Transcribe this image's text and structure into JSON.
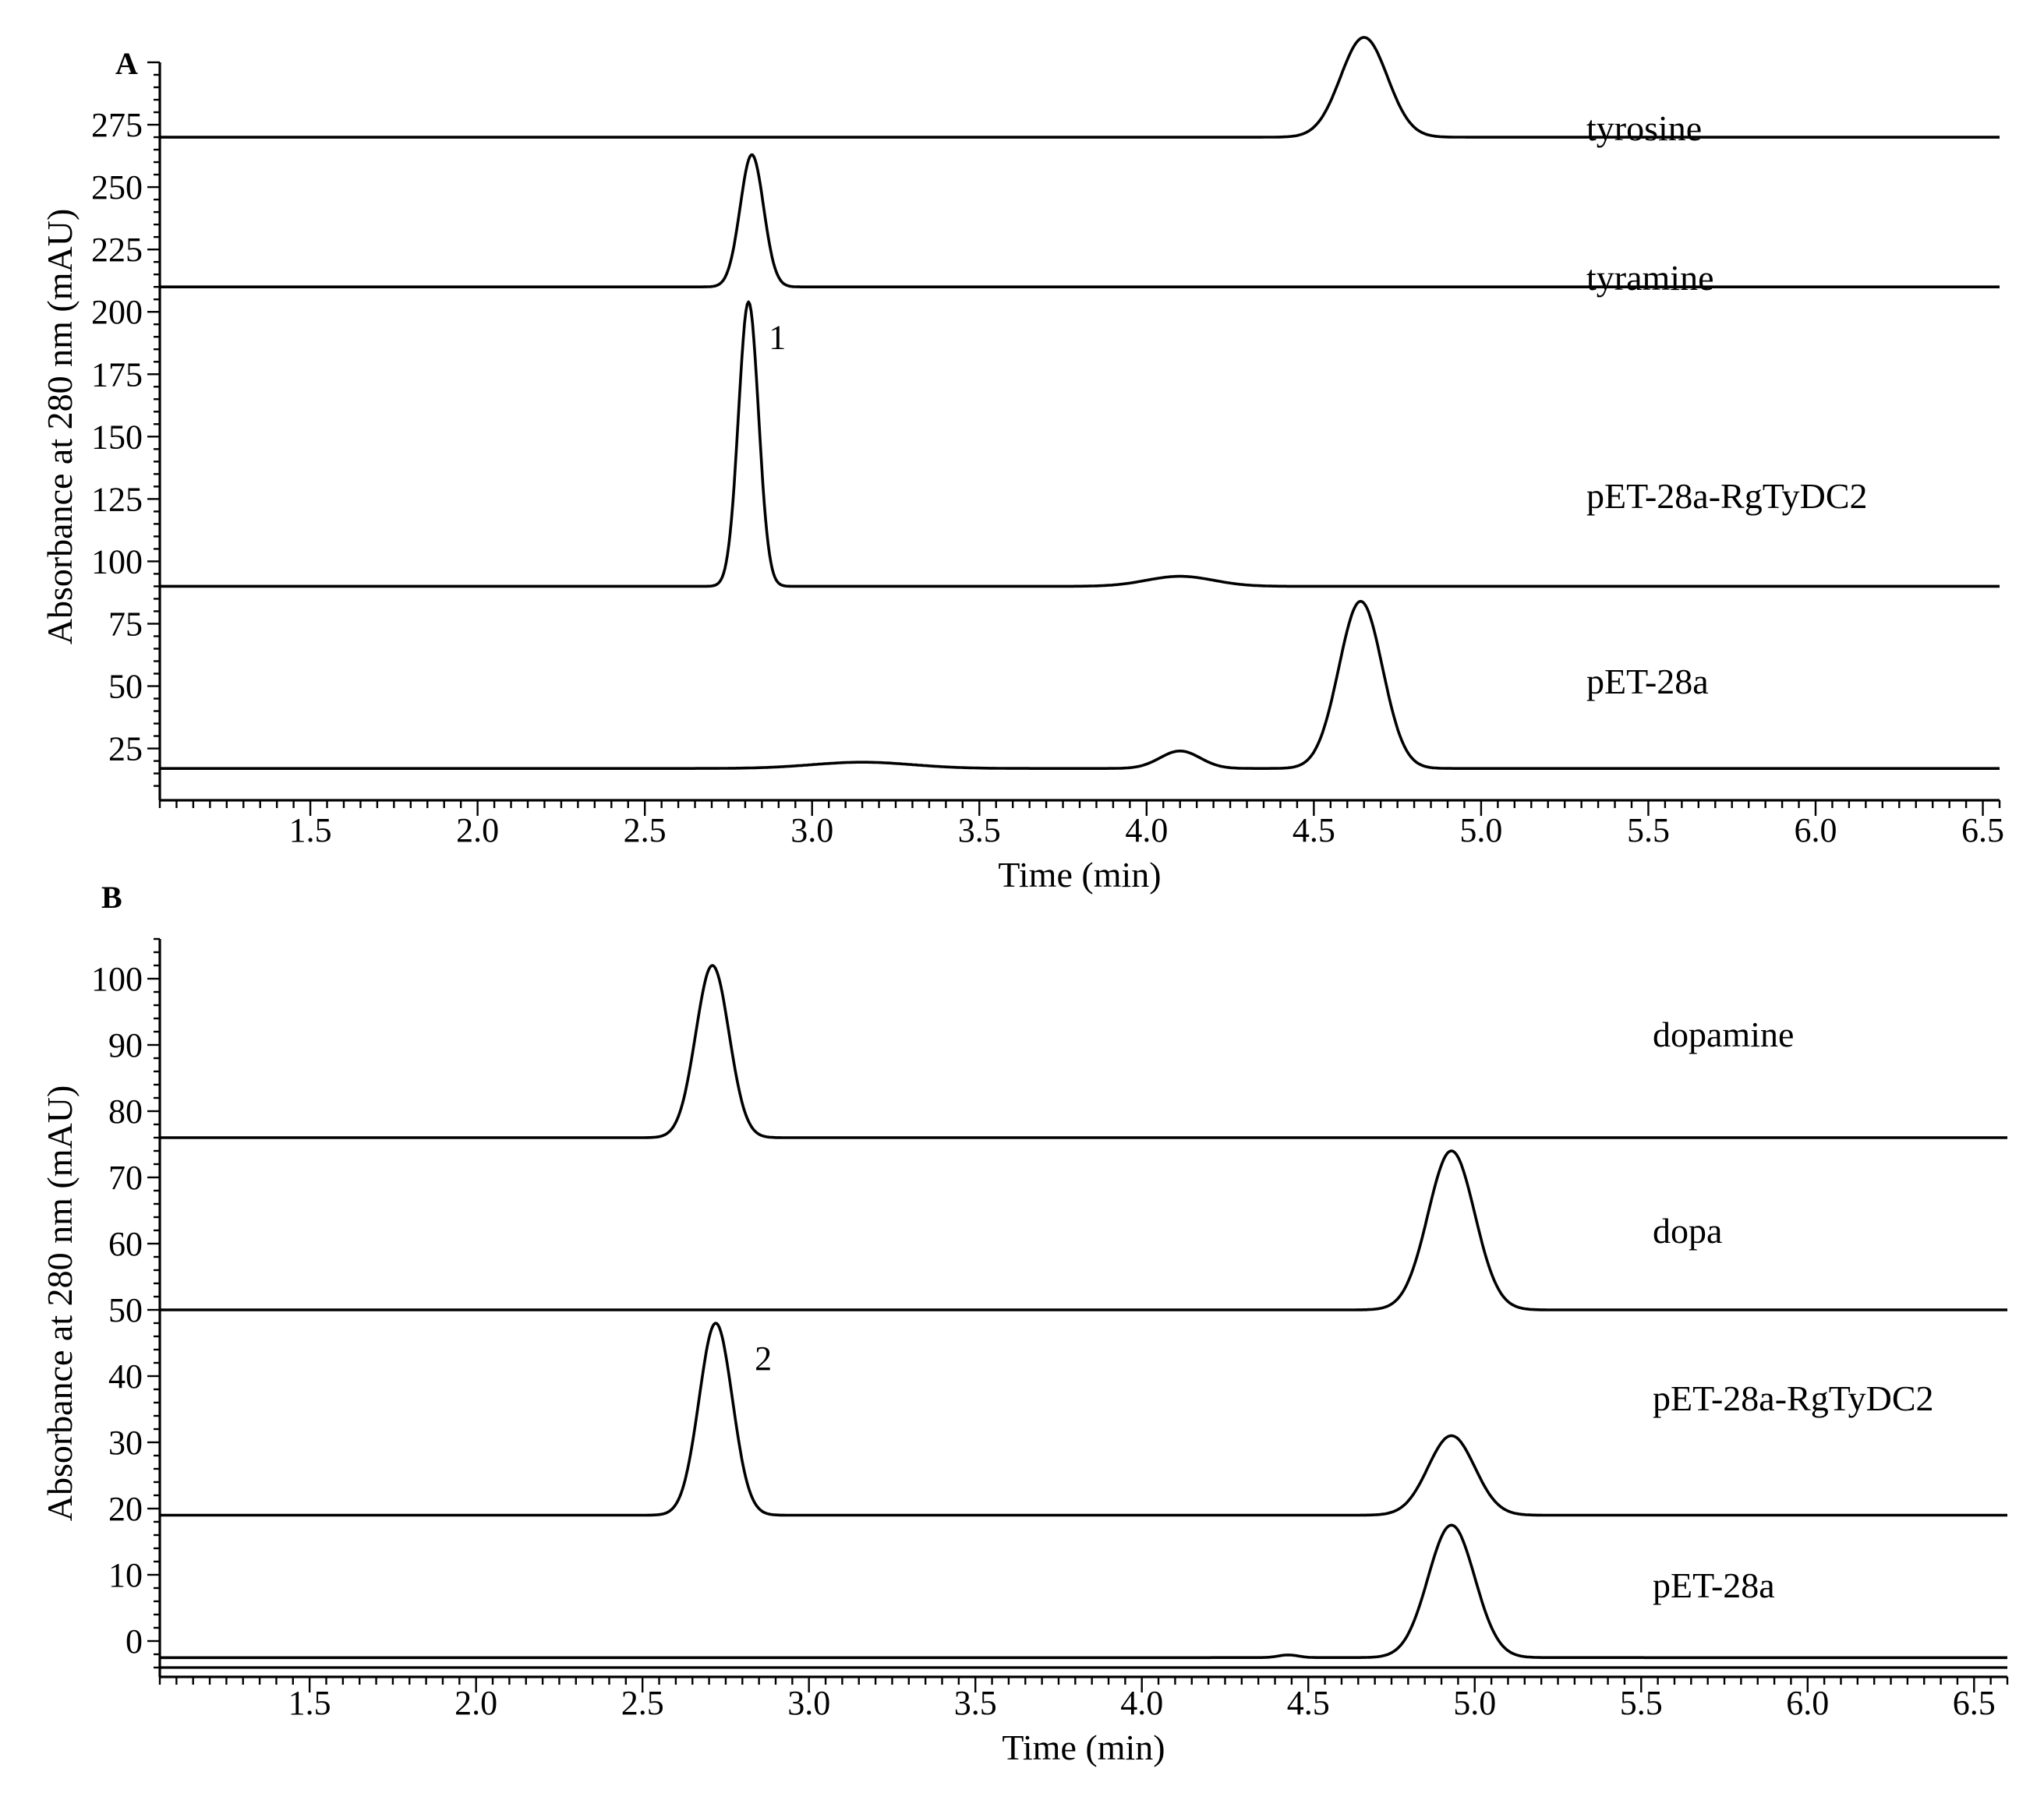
{
  "chart_data": [
    {
      "type": "line",
      "panel": "A",
      "xlabel": "Time (min)",
      "ylabel": "Absorbance at 280 nm (mAU)",
      "xlim": [
        1.05,
        6.55
      ],
      "ylim": [
        8,
        300
      ],
      "xticks": [
        1.5,
        2.0,
        2.5,
        3.0,
        3.5,
        4.0,
        4.5,
        5.0,
        5.5,
        6.0,
        6.5
      ],
      "yticks": [
        25,
        50,
        75,
        100,
        125,
        150,
        175,
        200,
        225,
        250,
        275
      ],
      "series": [
        {
          "name": "tyrosine",
          "baseline": 270,
          "peaks": [
            {
              "x": 4.65,
              "y": 310,
              "width": 0.07
            }
          ]
        },
        {
          "name": "tyramine",
          "baseline": 210,
          "peaks": [
            {
              "x": 2.82,
              "y": 263,
              "width": 0.035
            }
          ]
        },
        {
          "name": "pET-28a-RgTyDC2",
          "baseline": 90,
          "peaks": [
            {
              "x": 2.81,
              "y": 204,
              "width": 0.03,
              "label": "1"
            },
            {
              "x": 4.1,
              "y": 94,
              "width": 0.1
            }
          ]
        },
        {
          "name": "pET-28a",
          "baseline": 17,
          "peaks": [
            {
              "x": 3.15,
              "y": 19.5,
              "width": 0.15
            },
            {
              "x": 4.1,
              "y": 24,
              "width": 0.06
            },
            {
              "x": 4.64,
              "y": 84,
              "width": 0.065
            }
          ]
        }
      ]
    },
    {
      "type": "line",
      "panel": "B",
      "xlabel": "Time (min)",
      "ylabel": "Absorbance at 280 nm (mAU)",
      "xlim": [
        1.05,
        6.6
      ],
      "ylim": [
        -4,
        106
      ],
      "xticks": [
        1.5,
        2.0,
        2.5,
        3.0,
        3.5,
        4.0,
        4.5,
        5.0,
        5.5,
        6.0,
        6.5
      ],
      "yticks": [
        0,
        10,
        20,
        30,
        40,
        50,
        60,
        70,
        80,
        90,
        100
      ],
      "series": [
        {
          "name": "dopamine",
          "baseline": 76,
          "peaks": [
            {
              "x": 2.71,
              "y": 102,
              "width": 0.05
            }
          ]
        },
        {
          "name": "dopa",
          "baseline": 50,
          "peaks": [
            {
              "x": 4.93,
              "y": 74,
              "width": 0.07
            }
          ]
        },
        {
          "name": "pET-28a-RgTyDC2",
          "baseline": 19,
          "peaks": [
            {
              "x": 2.72,
              "y": 48,
              "width": 0.05,
              "label": "2"
            },
            {
              "x": 4.93,
              "y": 31,
              "width": 0.07
            }
          ]
        },
        {
          "name": "pET-28a",
          "baseline": -2.5,
          "peaks": [
            {
              "x": 4.44,
              "y": -2.1,
              "width": 0.03
            },
            {
              "x": 4.93,
              "y": 17.5,
              "width": 0.07
            }
          ]
        }
      ]
    }
  ]
}
